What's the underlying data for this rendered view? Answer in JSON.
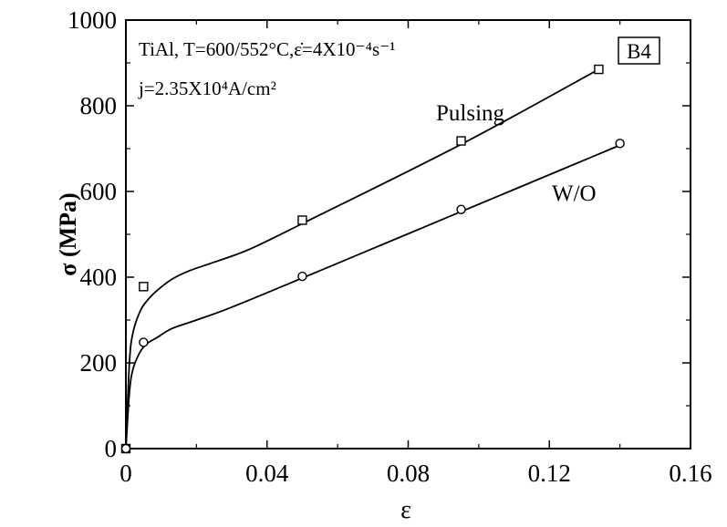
{
  "chart_data": {
    "type": "scatter",
    "xlabel": "ε",
    "ylabel": "σ (MPa)",
    "xlim": [
      0,
      0.16
    ],
    "ylim": [
      0,
      1000
    ],
    "x_ticks": [
      "0",
      "0.04",
      "0.08",
      "0.12",
      "0.16"
    ],
    "y_ticks": [
      "0",
      "200",
      "400",
      "600",
      "800",
      "1000"
    ],
    "grid": false,
    "annotation_line1": "TiAl, T=600/552°C,ε̇=4X10⁻⁴s⁻¹",
    "annotation_line2": "j=2.35X10⁴A/cm²",
    "badge": "B4",
    "series": [
      {
        "name": "Pulsing",
        "marker": "square",
        "points": [
          [
            0,
            0
          ],
          [
            0.005,
            378
          ],
          [
            0.05,
            533
          ],
          [
            0.095,
            718
          ],
          [
            0.134,
            885
          ]
        ],
        "curve": [
          [
            0,
            0
          ],
          [
            0.001,
            200
          ],
          [
            0.002,
            270
          ],
          [
            0.004,
            320
          ],
          [
            0.006,
            345
          ],
          [
            0.009,
            370
          ],
          [
            0.013,
            395
          ],
          [
            0.018,
            415
          ],
          [
            0.025,
            435
          ],
          [
            0.035,
            465
          ],
          [
            0.05,
            525
          ],
          [
            0.095,
            710
          ],
          [
            0.134,
            885
          ]
        ]
      },
      {
        "name": "W/O",
        "marker": "circle",
        "points": [
          [
            0,
            0
          ],
          [
            0.005,
            248
          ],
          [
            0.05,
            402
          ],
          [
            0.095,
            558
          ],
          [
            0.14,
            712
          ]
        ],
        "curve": [
          [
            0,
            0
          ],
          [
            0.001,
            130
          ],
          [
            0.002,
            185
          ],
          [
            0.004,
            225
          ],
          [
            0.006,
            245
          ],
          [
            0.009,
            260
          ],
          [
            0.013,
            280
          ],
          [
            0.02,
            300
          ],
          [
            0.03,
            330
          ],
          [
            0.05,
            398
          ],
          [
            0.095,
            553
          ],
          [
            0.14,
            708
          ]
        ]
      }
    ]
  }
}
